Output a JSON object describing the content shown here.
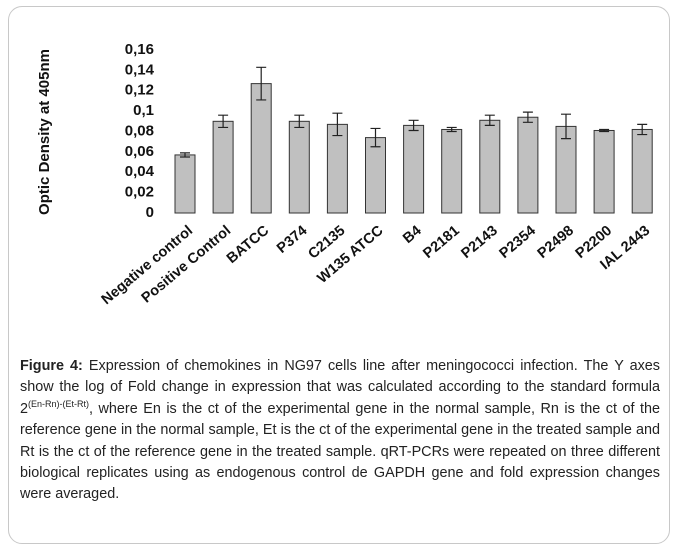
{
  "chart_data": {
    "type": "bar",
    "y_label": "Optic Density at 405nm",
    "categories": [
      "Negative control",
      "Positive Control",
      "BATCC",
      "P374",
      "C2135",
      "W135 ATCC",
      "B4",
      "P2181",
      "P2143",
      "P2354",
      "P2498",
      "P2200",
      "IAL 2443"
    ],
    "values": [
      0.057,
      0.09,
      0.127,
      0.09,
      0.087,
      0.074,
      0.086,
      0.082,
      0.091,
      0.094,
      0.085,
      0.081,
      0.082
    ],
    "errors": [
      0.002,
      0.006,
      0.016,
      0.006,
      0.011,
      0.009,
      0.005,
      0.002,
      0.005,
      0.005,
      0.012,
      0.001,
      0.005
    ],
    "color": "#c0c0c0",
    "ylim": [
      0,
      0.16
    ],
    "yticks": [
      0,
      {
        "value": 0.02,
        "label": "0,02"
      },
      {
        "value": 0.04,
        "label": "0,04"
      },
      {
        "value": 0.06,
        "label": "0,06"
      },
      {
        "value": 0.08,
        "label": "0,08"
      },
      {
        "value": 0.1,
        "label": "0,1"
      },
      {
        "value": 0.12,
        "label": "0,12"
      },
      {
        "value": 0.14,
        "label": "0,14"
      },
      {
        "value": 0.16,
        "label": "0,16"
      }
    ]
  },
  "caption": {
    "label": "Figure 4:",
    "text_before": " Expression of chemokines in NG97 cells line after meningococci infection. The Y axes show the log of Fold change in expression that was calculated according to the standard formula 2",
    "superscript": "(En-Rn)-(Et-Rt)",
    "text_after": ", where En is the ct of the experimental gene in the normal sample, Rn is the ct of the reference gene in the normal sample, Et is the ct of the experimental gene in the treated sample and Rt is the ct of the reference gene in the treated sample. qRT-PCRs were repeated on three different biological replicates using as endogenous control de GAPDH gene and fold expression changes were averaged."
  }
}
